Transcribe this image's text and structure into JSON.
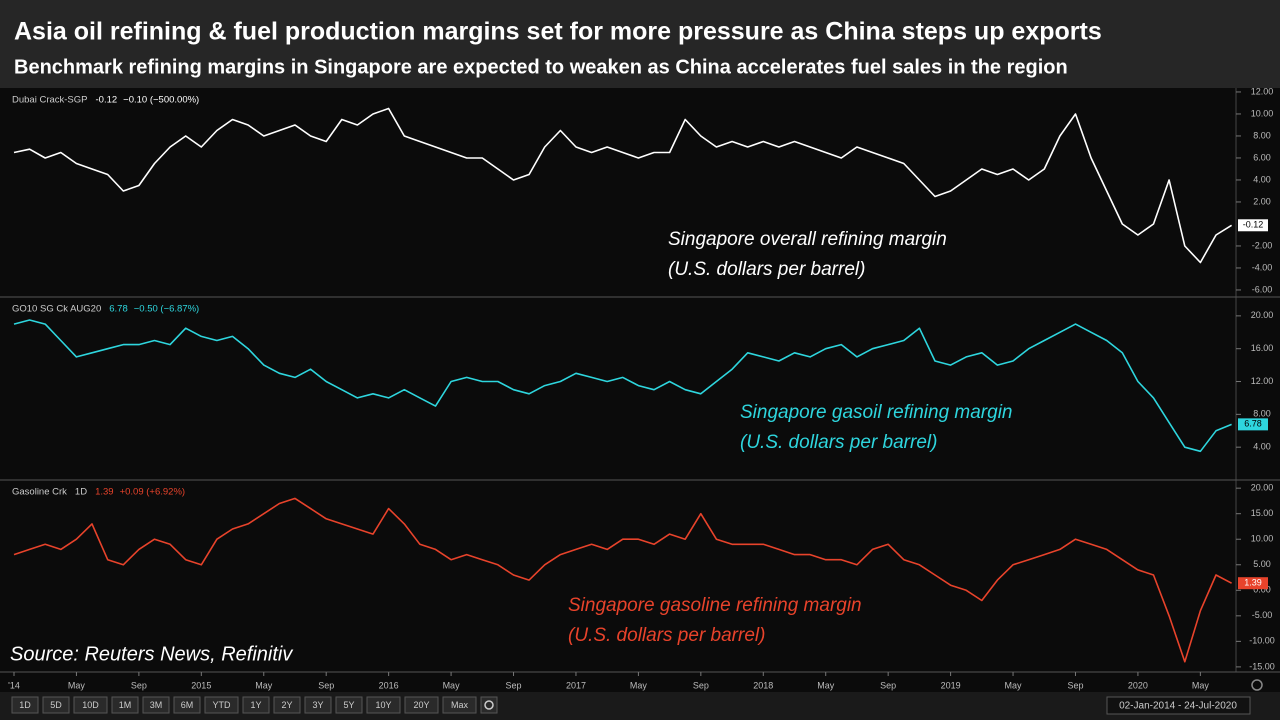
{
  "header": {
    "title": "Asia oil refining & fuel production margins set for more pressure as China steps up exports",
    "subtitle": "Benchmark refining margins in Singapore are expected to weaken as China accelerates fuel sales in the region"
  },
  "source": "Source: Reuters News, Refinitiv",
  "toolbar": [
    "1D",
    "5D",
    "10D",
    "1M",
    "3M",
    "6M",
    "YTD",
    "1Y",
    "2Y",
    "3Y",
    "5Y",
    "10Y",
    "20Y",
    "Max"
  ],
  "date_range": "02-Jan-2014 - 24-Jul-2020",
  "chart_data": [
    {
      "type": "line",
      "series": [
        {
          "name": "Dubai Crack-SGP",
          "color": "#ffffff",
          "values": [
            6.5,
            6.8,
            6.0,
            6.5,
            5.5,
            5.0,
            4.5,
            3.0,
            3.5,
            5.5,
            7.0,
            8.0,
            7.0,
            8.5,
            9.5,
            9.0,
            8.0,
            8.5,
            9.0,
            8.0,
            7.5,
            9.5,
            9.0,
            10.0,
            10.5,
            8.0,
            7.5,
            7.0,
            6.5,
            6.0,
            6.0,
            5.0,
            4.0,
            4.5,
            7.0,
            8.5,
            7.0,
            6.5,
            7.0,
            6.5,
            6.0,
            6.5,
            6.5,
            9.5,
            8.0,
            7.0,
            7.5,
            7.0,
            7.5,
            7.0,
            7.5,
            7.0,
            6.5,
            6.0,
            7.0,
            6.5,
            6.0,
            5.5,
            4.0,
            2.5,
            3.0,
            4.0,
            5.0,
            4.5,
            5.0,
            4.0,
            5.0,
            8.0,
            10.0,
            6.0,
            3.0,
            0.0,
            -1.0,
            0.0,
            4.0,
            -2.0,
            -3.5,
            -1.0,
            -0.12
          ]
        }
      ],
      "change": "−0.10 (−500.00%)",
      "annotation": [
        "Singapore overall refining margin",
        "(U.S. dollars per barrel)"
      ],
      "ylim": [
        -6.64,
        12.36
      ],
      "yticks": [
        {
          "value": 12,
          "label": "12.00"
        },
        {
          "value": 10,
          "label": "10.00"
        },
        {
          "value": 8,
          "label": "8.00"
        },
        {
          "value": 6,
          "label": "6.00"
        },
        {
          "value": 4,
          "label": "4.00"
        },
        {
          "value": 2,
          "label": "2.00"
        },
        {
          "value": -2,
          "label": "-2.00"
        },
        {
          "value": -4,
          "label": "-4.00"
        },
        {
          "value": -6,
          "label": "-6.00"
        }
      ],
      "grid": false
    },
    {
      "type": "line",
      "series": [
        {
          "name": "GO10 SG Ck AUG20",
          "color": "#2ed6de",
          "values": [
            19,
            19.5,
            19,
            17,
            15,
            15.5,
            16,
            16.5,
            16.5,
            17,
            16.5,
            18.5,
            17.5,
            17,
            17.5,
            16,
            14,
            13,
            12.5,
            13.5,
            12,
            11,
            10,
            10.5,
            10,
            11,
            10,
            9,
            12,
            12.5,
            12,
            12,
            11,
            10.5,
            11.5,
            12,
            13,
            12.5,
            12,
            12.5,
            11.5,
            11,
            12,
            11,
            10.5,
            12,
            13.5,
            15.5,
            15,
            14.5,
            15.5,
            15,
            16,
            16.5,
            15,
            16,
            16.5,
            17,
            18.5,
            14.5,
            14,
            15,
            15.5,
            14,
            14.5,
            16,
            17,
            18,
            19,
            18,
            17,
            15.5,
            12,
            10,
            7,
            4,
            3.5,
            6,
            6.78
          ]
        }
      ],
      "change": "−0.50 (−6.87%)",
      "annotation": [
        "Singapore gasoil refining margin",
        "(U.S. dollars per barrel)"
      ],
      "ylim": [
        0,
        22.3
      ],
      "yticks": [
        {
          "value": 20,
          "label": "20.00"
        },
        {
          "value": 16,
          "label": "16.00"
        },
        {
          "value": 12,
          "label": "12.00"
        },
        {
          "value": 8,
          "label": "8.00"
        },
        {
          "value": 4,
          "label": "4.00"
        }
      ],
      "grid": false
    },
    {
      "type": "line",
      "categories": [
        "'14",
        null,
        null,
        null,
        "May",
        null,
        null,
        null,
        "Sep",
        null,
        null,
        null,
        "2015",
        null,
        null,
        null,
        "May",
        null,
        null,
        null,
        "Sep",
        null,
        null,
        null,
        "2016",
        null,
        null,
        null,
        "May",
        null,
        null,
        null,
        "Sep",
        null,
        null,
        null,
        "2017",
        null,
        null,
        null,
        "May",
        null,
        null,
        null,
        "Sep",
        null,
        null,
        null,
        "2018",
        null,
        null,
        null,
        "May",
        null,
        null,
        null,
        "Sep",
        null,
        null,
        null,
        "2019",
        null,
        null,
        null,
        "May",
        null,
        null,
        null,
        "Sep",
        null,
        null,
        null,
        "2020",
        null,
        null,
        null,
        "May",
        null,
        null
      ],
      "series": [
        {
          "name": "Gasoline Crk",
          "color": "#e8432b",
          "values": [
            7,
            8,
            9,
            8,
            10,
            13,
            6,
            5,
            8,
            10,
            9,
            6,
            5,
            10,
            12,
            13,
            15,
            17,
            18,
            16,
            14,
            13,
            12,
            11,
            16,
            13,
            9,
            8,
            6,
            7,
            6,
            5,
            3,
            2,
            5,
            7,
            8,
            9,
            8,
            10,
            10,
            9,
            11,
            10,
            15,
            10,
            9,
            9,
            9,
            8,
            7,
            7,
            6,
            6,
            5,
            8,
            9,
            6,
            5,
            3,
            1,
            0,
            -2,
            2,
            5,
            6,
            7,
            8,
            10,
            9,
            8,
            6,
            4,
            3,
            -5,
            -14,
            -4,
            3,
            1.39
          ]
        }
      ],
      "interval": "1D",
      "change": "+0.09 (+6.92%)",
      "annotation": [
        "Singapore gasoline refining margin",
        "(U.S. dollars per barrel)"
      ],
      "ylim": [
        -16,
        21.6
      ],
      "yticks": [
        {
          "value": 20,
          "label": "20.00"
        },
        {
          "value": 15,
          "label": "15.00"
        },
        {
          "value": 10,
          "label": "10.00"
        },
        {
          "value": 5,
          "label": "5.00"
        },
        {
          "value": 0,
          "label": "0.00"
        },
        {
          "value": -5,
          "label": "-5.00"
        },
        {
          "value": -10,
          "label": "-10.00"
        },
        {
          "value": -15,
          "label": "-15.00"
        }
      ],
      "grid": false
    }
  ]
}
